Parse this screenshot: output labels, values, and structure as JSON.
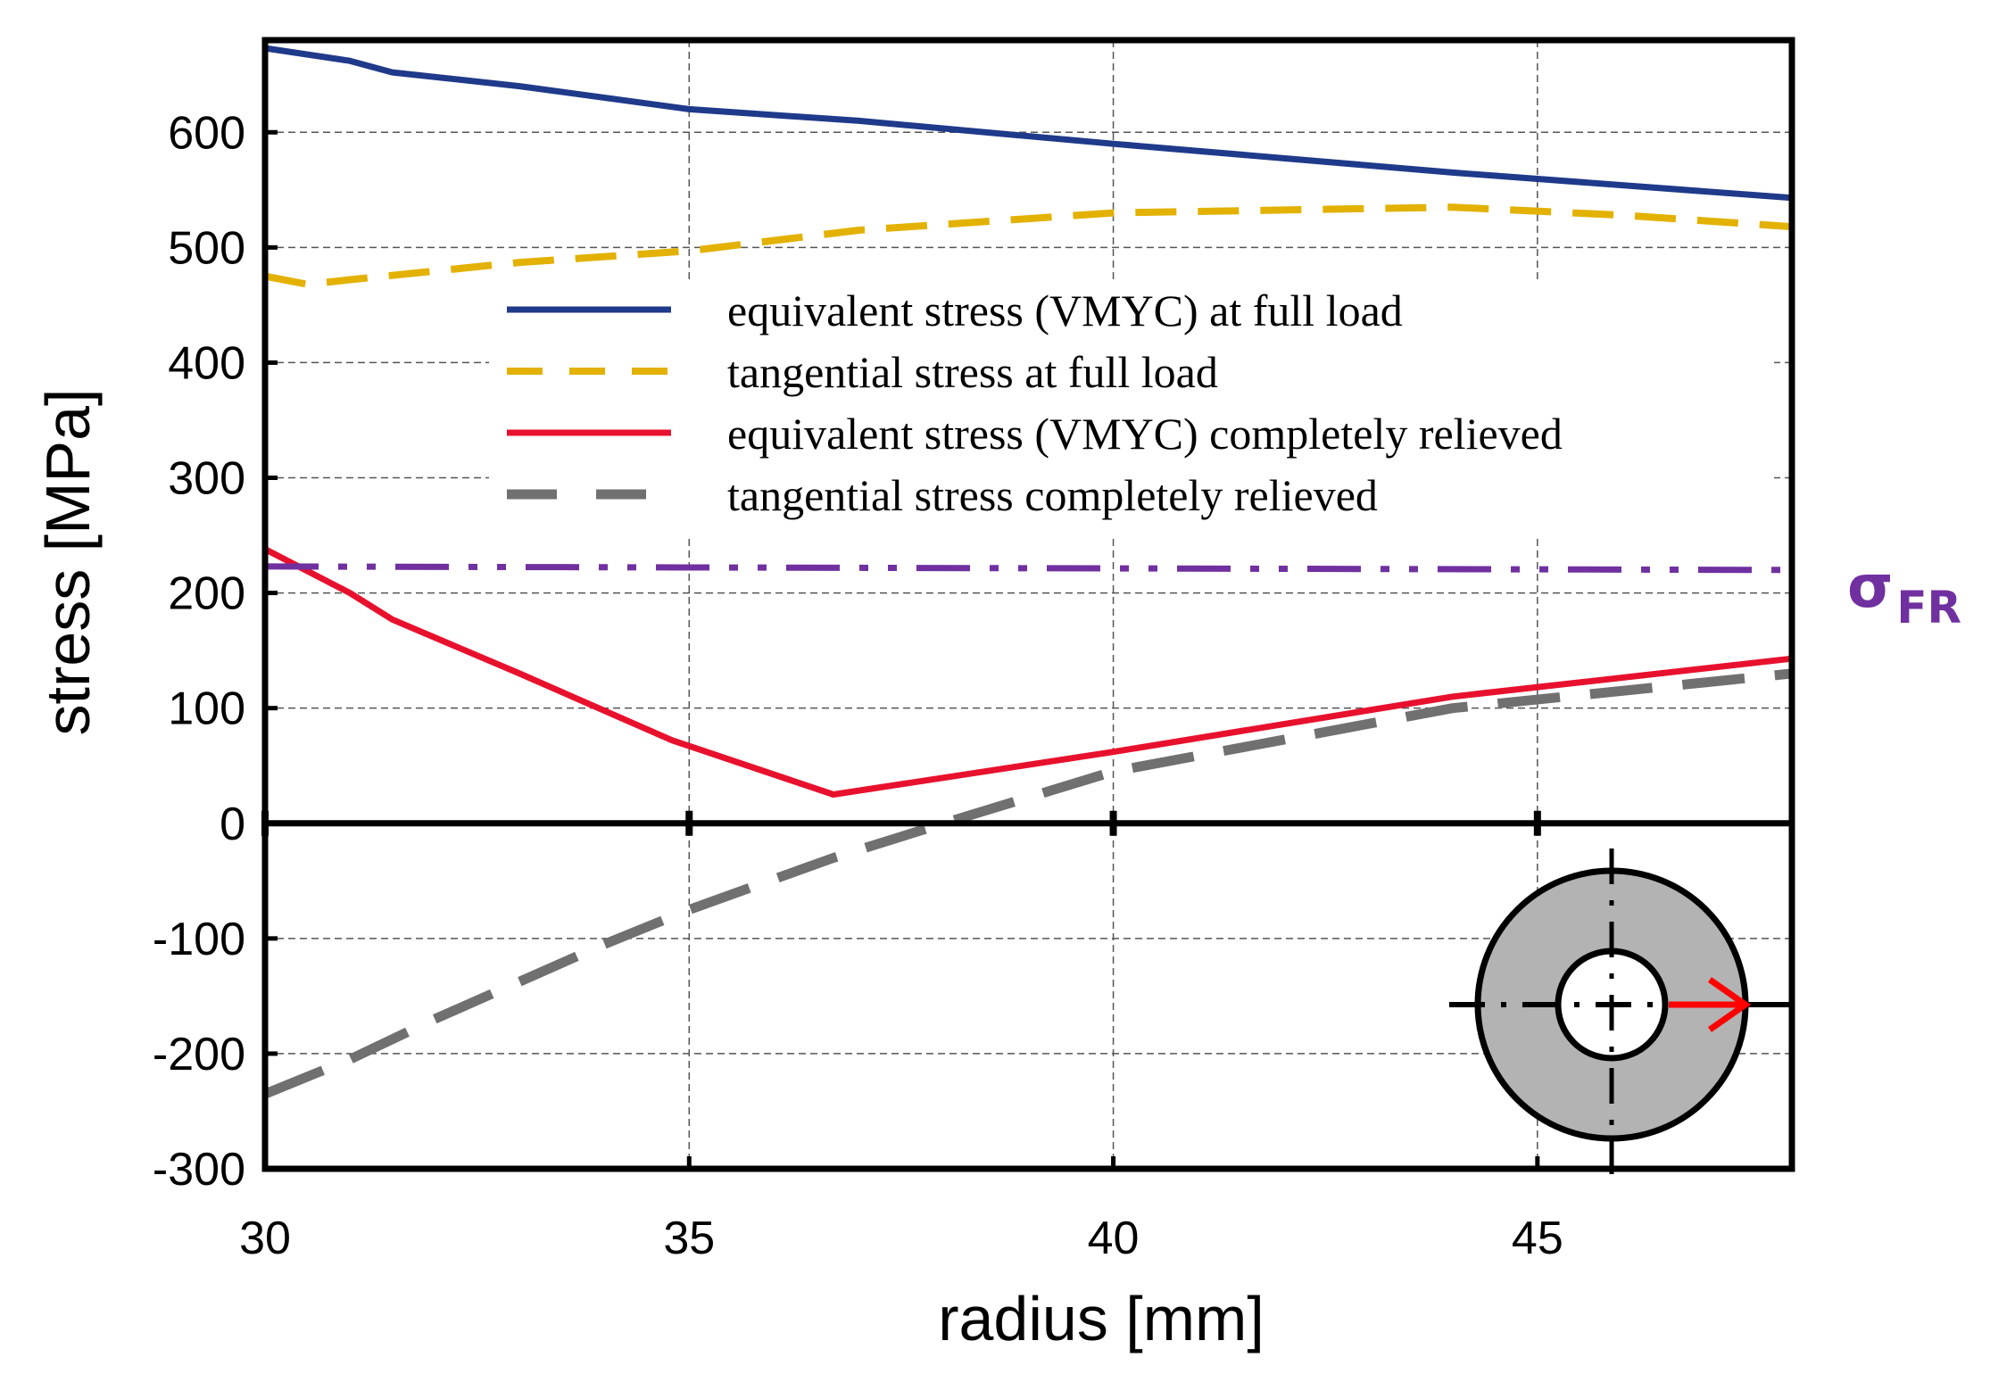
{
  "chart_data": {
    "type": "line",
    "xlabel": "radius [mm]",
    "ylabel": "stress [MPa]",
    "xlim": [
      30,
      48
    ],
    "ylim": [
      -300,
      680
    ],
    "xticks": [
      30,
      35,
      40,
      45
    ],
    "yticks": [
      -300,
      -200,
      -100,
      0,
      100,
      200,
      300,
      400,
      500,
      600
    ],
    "grid": true,
    "legend_position": "upper-center",
    "series": [
      {
        "name": "equivalent stress (VMYC) at full load",
        "color": "#1F3A8A",
        "style": "solid",
        "x": [
          30,
          31,
          31.5,
          33,
          35,
          37,
          40,
          44,
          48
        ],
        "y": [
          673,
          662,
          652,
          640,
          620,
          610,
          590,
          565,
          543
        ]
      },
      {
        "name": "tangential stress at full load",
        "color": "#E3B100",
        "style": "dashed",
        "x": [
          30,
          30.5,
          31,
          33,
          35,
          37,
          40,
          44,
          46,
          48
        ],
        "y": [
          475,
          468,
          472,
          487,
          497,
          515,
          530,
          535,
          528,
          518
        ]
      },
      {
        "name": "equivalent stress (VMYC) completely relieved",
        "color": "#E8112D",
        "style": "solid",
        "x": [
          30,
          31,
          31.5,
          33,
          34.8,
          36.7,
          40,
          44,
          48
        ],
        "y": [
          238,
          200,
          177,
          130,
          72,
          25,
          62,
          110,
          143
        ]
      },
      {
        "name": "tangential stress completely relieved",
        "color": "#707070",
        "style": "long-dashed",
        "x": [
          30,
          31,
          32,
          34,
          35,
          36.7,
          38,
          40,
          44,
          48
        ],
        "y": [
          -235,
          -205,
          -170,
          -105,
          -75,
          -30,
          0,
          45,
          100,
          130
        ]
      },
      {
        "name": "σFR",
        "color": "#7030A0",
        "style": "dash-dot-dot",
        "x": [
          30,
          48
        ],
        "y": [
          223,
          220
        ]
      }
    ],
    "annotation": {
      "symbol": "σ",
      "subscript": "FR",
      "color": "#7030A0"
    },
    "inset": {
      "label": "cross-section-icon",
      "fill": "#B3B3B3",
      "arrow_color": "#FF0000"
    }
  }
}
